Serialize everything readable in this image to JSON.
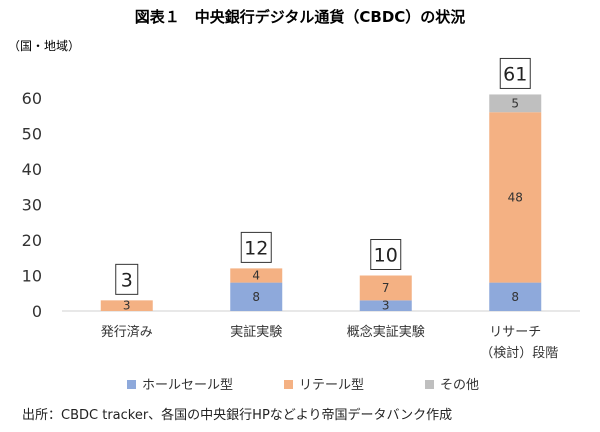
{
  "chart_data": {
    "type": "bar",
    "stacked": true,
    "title": "図表１　中央銀行デジタル通貨（CBDC）の状況",
    "unit_label": "（国・地域）",
    "categories": [
      "発行済み",
      "実証実験",
      "概念実証実験",
      "リサーチ（検討）段階"
    ],
    "category_lines": [
      [
        "発行済み"
      ],
      [
        "実証実験"
      ],
      [
        "概念実証実験"
      ],
      [
        "リサーチ",
        "（検討）段階"
      ]
    ],
    "series": [
      {
        "name": "ホールセール型",
        "color": "#8ea9db",
        "values": [
          0,
          8,
          3,
          8
        ]
      },
      {
        "name": "リテール型",
        "color": "#f4b183",
        "values": [
          3,
          4,
          7,
          48
        ]
      },
      {
        "name": "その他",
        "color": "#bfbfbf",
        "values": [
          0,
          0,
          0,
          5
        ]
      }
    ],
    "totals": [
      3,
      12,
      10,
      61
    ],
    "yticks": [
      0,
      10,
      20,
      30,
      40,
      50,
      60
    ],
    "ylim": [
      0,
      65
    ],
    "grid": false,
    "legend_position": "bottom",
    "source": "出所：CBDC tracker、各国の中央銀行HPなどより帝国データバンク作成"
  }
}
